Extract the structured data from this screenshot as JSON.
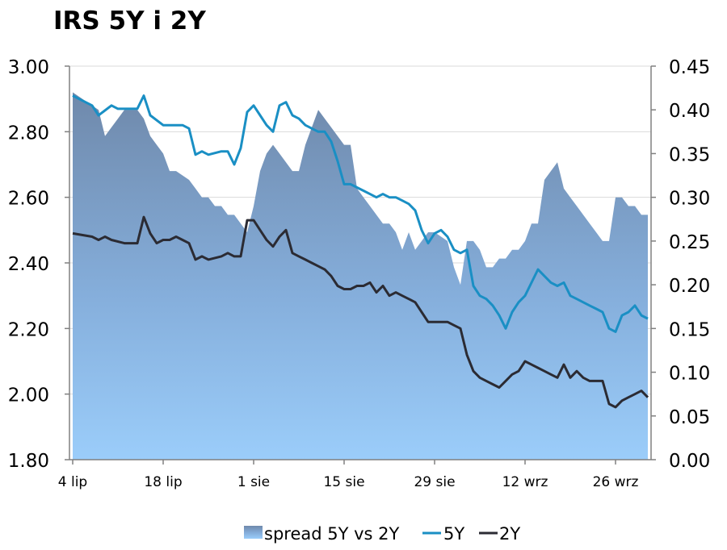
{
  "title": "IRS 5Y i 2Y",
  "chart_data": {
    "type": "line+area",
    "title": "IRS 5Y i 2Y",
    "left_axis": {
      "ylim": [
        1.8,
        3.0
      ],
      "ticks": [
        "3.00",
        "2.80",
        "2.60",
        "2.40",
        "2.20",
        "2.00",
        "1.80"
      ],
      "tick_values": [
        3.0,
        2.8,
        2.6,
        2.4,
        2.2,
        2.0,
        1.8
      ]
    },
    "right_axis": {
      "ylim": [
        0.0,
        0.45
      ],
      "ticks": [
        "0.45",
        "0.40",
        "0.35",
        "0.30",
        "0.25",
        "0.20",
        "0.15",
        "0.10",
        "0.05",
        "0.00"
      ],
      "tick_values": [
        0.45,
        0.4,
        0.35,
        0.3,
        0.25,
        0.2,
        0.15,
        0.1,
        0.05,
        0.0
      ]
    },
    "x_tick_labels": [
      "4 lip",
      "18 lip",
      "1 sie",
      "15 sie",
      "29 sie",
      "12 wrz",
      "26 wrz"
    ],
    "x_tick_index": [
      0,
      14,
      28,
      42,
      56,
      70,
      84
    ],
    "x_count": 90,
    "grid": true,
    "legend_position": "bottom",
    "series": [
      {
        "name": "spread 5Y vs 2Y",
        "type": "area",
        "axis": "right",
        "color": "#7d9ec0",
        "points": [
          [
            0,
            0.42
          ],
          [
            2,
            0.41
          ],
          [
            4,
            0.4
          ],
          [
            5,
            0.37
          ],
          [
            6,
            0.38
          ],
          [
            7,
            0.39
          ],
          [
            8,
            0.4
          ],
          [
            10,
            0.4
          ],
          [
            11,
            0.39
          ],
          [
            12,
            0.37
          ],
          [
            13,
            0.36
          ],
          [
            14,
            0.35
          ],
          [
            15,
            0.33
          ],
          [
            16,
            0.33
          ],
          [
            18,
            0.32
          ],
          [
            19,
            0.31
          ],
          [
            20,
            0.3
          ],
          [
            21,
            0.3
          ],
          [
            22,
            0.29
          ],
          [
            23,
            0.29
          ],
          [
            24,
            0.28
          ],
          [
            25,
            0.28
          ],
          [
            26,
            0.27
          ],
          [
            27,
            0.26
          ],
          [
            28,
            0.29
          ],
          [
            29,
            0.33
          ],
          [
            30,
            0.35
          ],
          [
            31,
            0.36
          ],
          [
            32,
            0.35
          ],
          [
            33,
            0.34
          ],
          [
            34,
            0.33
          ],
          [
            35,
            0.33
          ],
          [
            36,
            0.36
          ],
          [
            37,
            0.38
          ],
          [
            38,
            0.4
          ],
          [
            39,
            0.39
          ],
          [
            40,
            0.38
          ],
          [
            41,
            0.37
          ],
          [
            42,
            0.36
          ],
          [
            43,
            0.36
          ],
          [
            44,
            0.31
          ],
          [
            45,
            0.3
          ],
          [
            46,
            0.29
          ],
          [
            47,
            0.28
          ],
          [
            48,
            0.27
          ],
          [
            49,
            0.27
          ],
          [
            50,
            0.26
          ],
          [
            51,
            0.24
          ],
          [
            52,
            0.26
          ],
          [
            53,
            0.24
          ],
          [
            54,
            0.25
          ],
          [
            55,
            0.26
          ],
          [
            56,
            0.26
          ],
          [
            58,
            0.25
          ],
          [
            59,
            0.22
          ],
          [
            60,
            0.2
          ],
          [
            61,
            0.25
          ],
          [
            62,
            0.25
          ],
          [
            63,
            0.24
          ],
          [
            64,
            0.22
          ],
          [
            65,
            0.22
          ],
          [
            66,
            0.23
          ],
          [
            67,
            0.23
          ],
          [
            68,
            0.24
          ],
          [
            69,
            0.24
          ],
          [
            70,
            0.25
          ],
          [
            71,
            0.27
          ],
          [
            72,
            0.27
          ],
          [
            73,
            0.32
          ],
          [
            74,
            0.33
          ],
          [
            75,
            0.34
          ],
          [
            76,
            0.31
          ],
          [
            77,
            0.3
          ],
          [
            78,
            0.29
          ],
          [
            79,
            0.28
          ],
          [
            80,
            0.27
          ],
          [
            81,
            0.26
          ],
          [
            82,
            0.25
          ],
          [
            83,
            0.25
          ],
          [
            84,
            0.3
          ],
          [
            85,
            0.3
          ],
          [
            86,
            0.29
          ],
          [
            87,
            0.29
          ],
          [
            88,
            0.28
          ],
          [
            89,
            0.28
          ]
        ]
      },
      {
        "name": "5Y",
        "type": "line",
        "axis": "left",
        "color": "#1a8fc4",
        "points": [
          [
            0,
            2.91
          ],
          [
            1,
            2.9
          ],
          [
            3,
            2.88
          ],
          [
            4,
            2.85
          ],
          [
            6,
            2.88
          ],
          [
            7,
            2.87
          ],
          [
            9,
            2.87
          ],
          [
            10,
            2.87
          ],
          [
            11,
            2.91
          ],
          [
            12,
            2.85
          ],
          [
            14,
            2.82
          ],
          [
            16,
            2.82
          ],
          [
            17,
            2.82
          ],
          [
            18,
            2.81
          ],
          [
            19,
            2.73
          ],
          [
            20,
            2.74
          ],
          [
            21,
            2.73
          ],
          [
            23,
            2.74
          ],
          [
            24,
            2.74
          ],
          [
            25,
            2.7
          ],
          [
            26,
            2.75
          ],
          [
            27,
            2.86
          ],
          [
            28,
            2.88
          ],
          [
            29,
            2.85
          ],
          [
            30,
            2.82
          ],
          [
            31,
            2.8
          ],
          [
            32,
            2.88
          ],
          [
            33,
            2.89
          ],
          [
            34,
            2.85
          ],
          [
            35,
            2.84
          ],
          [
            36,
            2.82
          ],
          [
            37,
            2.81
          ],
          [
            38,
            2.8
          ],
          [
            39,
            2.8
          ],
          [
            40,
            2.77
          ],
          [
            41,
            2.71
          ],
          [
            42,
            2.64
          ],
          [
            43,
            2.64
          ],
          [
            44,
            2.63
          ],
          [
            45,
            2.62
          ],
          [
            46,
            2.61
          ],
          [
            47,
            2.6
          ],
          [
            48,
            2.61
          ],
          [
            49,
            2.6
          ],
          [
            50,
            2.6
          ],
          [
            51,
            2.59
          ],
          [
            52,
            2.58
          ],
          [
            53,
            2.56
          ],
          [
            54,
            2.5
          ],
          [
            55,
            2.46
          ],
          [
            56,
            2.49
          ],
          [
            57,
            2.5
          ],
          [
            58,
            2.48
          ],
          [
            59,
            2.44
          ],
          [
            60,
            2.43
          ],
          [
            61,
            2.44
          ],
          [
            62,
            2.33
          ],
          [
            63,
            2.3
          ],
          [
            64,
            2.29
          ],
          [
            65,
            2.27
          ],
          [
            66,
            2.24
          ],
          [
            67,
            2.2
          ],
          [
            68,
            2.25
          ],
          [
            69,
            2.28
          ],
          [
            70,
            2.3
          ],
          [
            71,
            2.34
          ],
          [
            72,
            2.38
          ],
          [
            73,
            2.36
          ],
          [
            74,
            2.34
          ],
          [
            75,
            2.33
          ],
          [
            76,
            2.34
          ],
          [
            77,
            2.3
          ],
          [
            78,
            2.29
          ],
          [
            79,
            2.28
          ],
          [
            80,
            2.27
          ],
          [
            81,
            2.26
          ],
          [
            82,
            2.25
          ],
          [
            83,
            2.2
          ],
          [
            84,
            2.19
          ],
          [
            85,
            2.24
          ],
          [
            86,
            2.25
          ],
          [
            87,
            2.27
          ],
          [
            88,
            2.24
          ],
          [
            89,
            2.23
          ]
        ]
      },
      {
        "name": "2Y",
        "type": "line",
        "axis": "left",
        "color": "#2b2b33",
        "points": [
          [
            0,
            2.49
          ],
          [
            3,
            2.48
          ],
          [
            4,
            2.47
          ],
          [
            5,
            2.48
          ],
          [
            6,
            2.47
          ],
          [
            8,
            2.46
          ],
          [
            10,
            2.46
          ],
          [
            11,
            2.54
          ],
          [
            12,
            2.49
          ],
          [
            13,
            2.46
          ],
          [
            14,
            2.47
          ],
          [
            15,
            2.47
          ],
          [
            16,
            2.48
          ],
          [
            17,
            2.47
          ],
          [
            18,
            2.46
          ],
          [
            19,
            2.41
          ],
          [
            20,
            2.42
          ],
          [
            21,
            2.41
          ],
          [
            23,
            2.42
          ],
          [
            24,
            2.43
          ],
          [
            25,
            2.42
          ],
          [
            26,
            2.42
          ],
          [
            27,
            2.53
          ],
          [
            28,
            2.53
          ],
          [
            29,
            2.5
          ],
          [
            30,
            2.47
          ],
          [
            31,
            2.45
          ],
          [
            32,
            2.48
          ],
          [
            33,
            2.5
          ],
          [
            34,
            2.43
          ],
          [
            35,
            2.42
          ],
          [
            36,
            2.41
          ],
          [
            37,
            2.4
          ],
          [
            38,
            2.39
          ],
          [
            39,
            2.38
          ],
          [
            40,
            2.36
          ],
          [
            41,
            2.33
          ],
          [
            42,
            2.32
          ],
          [
            43,
            2.32
          ],
          [
            44,
            2.33
          ],
          [
            45,
            2.33
          ],
          [
            46,
            2.34
          ],
          [
            47,
            2.31
          ],
          [
            48,
            2.33
          ],
          [
            49,
            2.3
          ],
          [
            50,
            2.31
          ],
          [
            51,
            2.3
          ],
          [
            52,
            2.29
          ],
          [
            53,
            2.28
          ],
          [
            54,
            2.25
          ],
          [
            55,
            2.22
          ],
          [
            56,
            2.22
          ],
          [
            57,
            2.22
          ],
          [
            58,
            2.22
          ],
          [
            59,
            2.21
          ],
          [
            60,
            2.2
          ],
          [
            61,
            2.12
          ],
          [
            62,
            2.07
          ],
          [
            63,
            2.05
          ],
          [
            64,
            2.04
          ],
          [
            65,
            2.03
          ],
          [
            66,
            2.02
          ],
          [
            67,
            2.04
          ],
          [
            68,
            2.06
          ],
          [
            69,
            2.07
          ],
          [
            70,
            2.1
          ],
          [
            71,
            2.09
          ],
          [
            72,
            2.08
          ],
          [
            73,
            2.07
          ],
          [
            74,
            2.06
          ],
          [
            75,
            2.05
          ],
          [
            76,
            2.09
          ],
          [
            77,
            2.05
          ],
          [
            78,
            2.07
          ],
          [
            79,
            2.05
          ],
          [
            80,
            2.04
          ],
          [
            82,
            2.04
          ],
          [
            83,
            1.97
          ],
          [
            84,
            1.96
          ],
          [
            85,
            1.98
          ],
          [
            86,
            1.99
          ],
          [
            87,
            2.0
          ],
          [
            88,
            2.01
          ],
          [
            89,
            1.99
          ]
        ]
      }
    ]
  },
  "legend": {
    "spread_label": "spread 5Y vs 2Y",
    "fiveY_label": "5Y",
    "twoY_label": "2Y"
  },
  "colors": {
    "fiveY": "#1a8fc4",
    "twoY": "#2b2b33",
    "area_top": "#6f89ab",
    "area_bottom": "#9bcdfa",
    "grid": "#d9d9d9"
  }
}
